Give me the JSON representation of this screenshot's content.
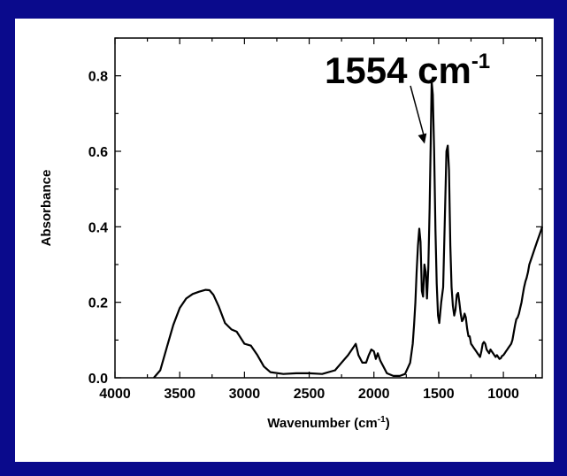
{
  "chart_data": {
    "type": "line",
    "title": "",
    "xlabel": "Wavenumber (cm",
    "xlabel_sup": "-1",
    "xlabel_close": ")",
    "ylabel": "Absorbance",
    "xlim": [
      4000,
      700
    ],
    "ylim": [
      0,
      0.9
    ],
    "x_reversed": true,
    "grid": false,
    "x_ticks": [
      4000,
      3500,
      3000,
      2500,
      2000,
      1500,
      1000
    ],
    "x_tick_labels": [
      "4000",
      "3500",
      "3000",
      "2500",
      "2000",
      "1500",
      "1000"
    ],
    "y_ticks": [
      0,
      0.2,
      0.4,
      0.6,
      0.8
    ],
    "y_tick_labels": [
      "0.0",
      "0.2",
      "0.4",
      "0.6",
      "0.8"
    ],
    "series": [
      {
        "color": "#000000",
        "x": [
          3700,
          3650,
          3600,
          3550,
          3500,
          3450,
          3400,
          3350,
          3300,
          3270,
          3240,
          3200,
          3150,
          3100,
          3060,
          3000,
          2950,
          2900,
          2850,
          2800,
          2700,
          2600,
          2500,
          2400,
          2300,
          2250,
          2200,
          2160,
          2140,
          2120,
          2090,
          2060,
          2040,
          2020,
          2000,
          1985,
          1970,
          1950,
          1900,
          1850,
          1800,
          1760,
          1720,
          1700,
          1690,
          1680,
          1670,
          1660,
          1650,
          1640,
          1630,
          1620,
          1610,
          1600,
          1590,
          1580,
          1570,
          1560,
          1554,
          1545,
          1535,
          1525,
          1515,
          1505,
          1495,
          1480,
          1465,
          1450,
          1440,
          1430,
          1420,
          1410,
          1400,
          1390,
          1380,
          1370,
          1360,
          1350,
          1340,
          1330,
          1320,
          1310,
          1300,
          1290,
          1280,
          1270,
          1260,
          1250,
          1240,
          1230,
          1220,
          1210,
          1200,
          1190,
          1180,
          1170,
          1160,
          1150,
          1140,
          1130,
          1120,
          1110,
          1100,
          1090,
          1080,
          1070,
          1060,
          1050,
          1040,
          1030,
          1020,
          1010,
          1000,
          990,
          980,
          970,
          960,
          950,
          940,
          930,
          920,
          910,
          900,
          890,
          880,
          870,
          860,
          850,
          840,
          830,
          820,
          810,
          800,
          780,
          760,
          740,
          720,
          700
        ],
        "y": [
          0.0,
          0.02,
          0.08,
          0.14,
          0.185,
          0.21,
          0.222,
          0.228,
          0.233,
          0.232,
          0.22,
          0.19,
          0.145,
          0.128,
          0.122,
          0.09,
          0.085,
          0.06,
          0.03,
          0.015,
          0.01,
          0.012,
          0.012,
          0.01,
          0.02,
          0.04,
          0.06,
          0.08,
          0.09,
          0.06,
          0.04,
          0.04,
          0.06,
          0.075,
          0.07,
          0.05,
          0.065,
          0.045,
          0.012,
          0.005,
          0.005,
          0.01,
          0.04,
          0.09,
          0.14,
          0.2,
          0.28,
          0.35,
          0.395,
          0.36,
          0.23,
          0.215,
          0.3,
          0.28,
          0.21,
          0.29,
          0.45,
          0.65,
          0.785,
          0.75,
          0.6,
          0.39,
          0.25,
          0.165,
          0.145,
          0.2,
          0.24,
          0.45,
          0.6,
          0.615,
          0.55,
          0.35,
          0.24,
          0.19,
          0.165,
          0.18,
          0.22,
          0.225,
          0.2,
          0.17,
          0.15,
          0.155,
          0.17,
          0.16,
          0.13,
          0.11,
          0.11,
          0.09,
          0.085,
          0.08,
          0.075,
          0.07,
          0.065,
          0.06,
          0.055,
          0.07,
          0.09,
          0.095,
          0.09,
          0.075,
          0.07,
          0.065,
          0.075,
          0.07,
          0.065,
          0.06,
          0.055,
          0.06,
          0.055,
          0.05,
          0.052,
          0.058,
          0.06,
          0.065,
          0.07,
          0.075,
          0.08,
          0.085,
          0.09,
          0.1,
          0.12,
          0.14,
          0.155,
          0.16,
          0.17,
          0.185,
          0.2,
          0.22,
          0.24,
          0.255,
          0.265,
          0.28,
          0.3,
          0.32,
          0.34,
          0.36,
          0.38,
          0.4
        ]
      }
    ],
    "annotations": [
      {
        "text": "1554 cm",
        "sup": "-1",
        "arrow_to_x": 1554,
        "arrow_to_y": 0.62
      }
    ]
  }
}
